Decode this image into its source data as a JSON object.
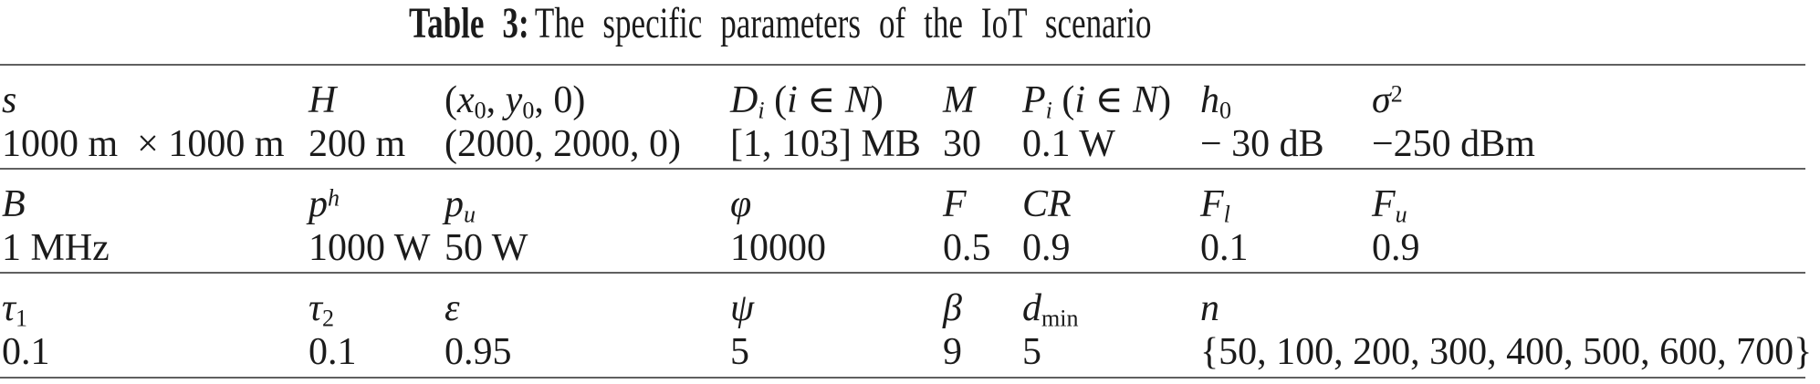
{
  "caption": {
    "label": "Table 3:",
    "text": "The specific parameters of the IoT scenario"
  },
  "table": {
    "groups": [
      {
        "cells": [
          {
            "param": "<i>s</i>",
            "value": "1000 m&nbsp;&nbsp;× 1000 m"
          },
          {
            "param": "<i>H</i>",
            "value": "200 m"
          },
          {
            "param": "(<i>x</i><sub>0</sub>, <i>y</i><sub>0</sub>, 0)",
            "value": "(2000, 2000, 0)"
          },
          {
            "param": "<i>D</i><sub><i>i</i></sub> (<i>i</i> ∈ <i>N</i>)",
            "value": "[1, 103] MB"
          },
          {
            "param": "<i>M</i>",
            "value": "30"
          },
          {
            "param": "<i>P</i><sub><i>i</i></sub> (<i>i</i> ∈ <i>N</i>)",
            "value": "0.1 W"
          },
          {
            "param": "<i>h</i><sub>0</sub>",
            "value": "− 30 dB"
          },
          {
            "param": "<i>σ</i><sup>2</sup>",
            "value": "−250 dBm"
          }
        ]
      },
      {
        "cells": [
          {
            "param": "<i>B</i>",
            "value": "1 MHz"
          },
          {
            "param": "<i>p</i><sup><i>h</i></sup>",
            "value": "1000 W"
          },
          {
            "param": "<i>p</i><sub><i>u</i></sub>",
            "value": "50 W"
          },
          {
            "param": "<i>φ</i>",
            "value": "10000"
          },
          {
            "param": "<i>F</i>",
            "value": "0.5"
          },
          {
            "param": "<i>CR</i>",
            "value": "0.9"
          },
          {
            "param": "<i>F</i><sub><i>l</i></sub>",
            "value": "0.1"
          },
          {
            "param": "<i>F</i><sub><i>u</i></sub>",
            "value": "0.9"
          }
        ]
      },
      {
        "cells": [
          {
            "param": "<i>τ</i><sub>1</sub>",
            "value": "0.1"
          },
          {
            "param": "<i>τ</i><sub>2</sub>",
            "value": "0.1"
          },
          {
            "param": "<i>ε</i>",
            "value": "0.95"
          },
          {
            "param": "<i>ψ</i>",
            "value": "5"
          },
          {
            "param": "<i>β</i>",
            "value": "9"
          },
          {
            "param": "<i>d</i><sub>min</sub>",
            "value": "5"
          },
          {
            "param": "<i>n</i>",
            "value": "{50, 100, 200, 300, 400, 500, 600, 700}",
            "span": 2
          }
        ]
      }
    ]
  }
}
